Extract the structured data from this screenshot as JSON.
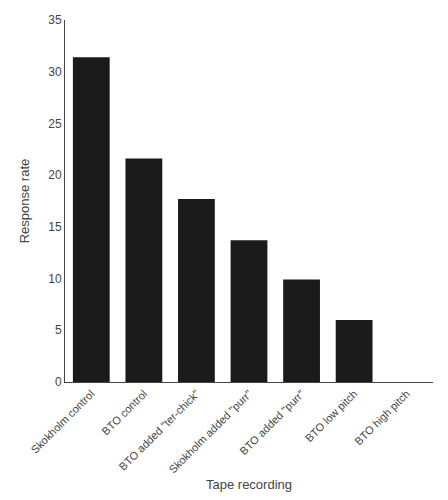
{
  "chart_data": {
    "type": "bar",
    "categories": [
      "Skokholm control",
      "BTO control",
      "BTO added \"ter-chick\"",
      "Skokholm added \"purr\"",
      "BTO added \"purr\"",
      "BTO low pitch",
      "BTO high pitch"
    ],
    "values": [
      31.4,
      21.6,
      17.7,
      13.7,
      9.9,
      6.0,
      0.0
    ],
    "color": "#1a1a1a",
    "xlabel": "Tape recording",
    "ylabel": "Response rate",
    "ylim": [
      0,
      35
    ],
    "yticks": [
      0,
      5,
      10,
      15,
      20,
      25,
      30,
      35
    ],
    "grid": false
  }
}
